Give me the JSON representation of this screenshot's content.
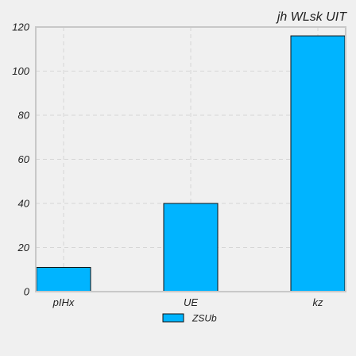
{
  "chart_data": {
    "type": "bar",
    "title": "jh WLsk UIT",
    "categories": [
      "pIHx",
      "UE",
      "kz"
    ],
    "series": [
      {
        "name": "ZSUb",
        "values": [
          11,
          40,
          116
        ],
        "color": "#00b4ff"
      }
    ],
    "ylim": [
      0,
      120
    ],
    "yticks": [
      0,
      20,
      40,
      60,
      80,
      100,
      120
    ],
    "grid": true,
    "legend_position": "bottom-center",
    "xlabel": "",
    "ylabel": ""
  }
}
